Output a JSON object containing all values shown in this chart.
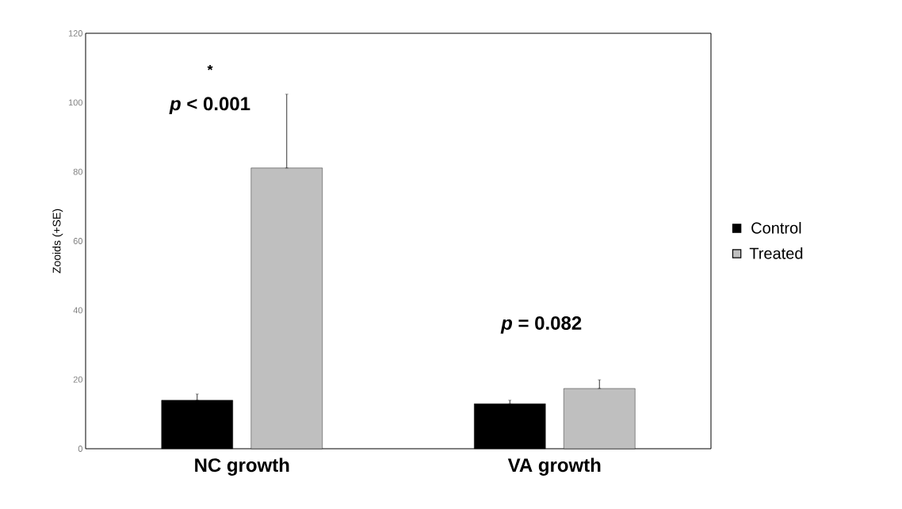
{
  "chart_data": {
    "type": "bar",
    "ylabel": "Zooids (+SE)",
    "categories": [
      "NC growth",
      "VA growth"
    ],
    "series": [
      {
        "name": "Control",
        "color": "#000000",
        "values": [
          14.0,
          13.0
        ],
        "errors": [
          [
            14.0,
            15.8
          ],
          [
            13.0,
            14.0
          ]
        ]
      },
      {
        "name": "Treated",
        "color": "#bfbfbf",
        "values": [
          81.1,
          17.4
        ],
        "errors": [
          [
            81.1,
            102.4
          ],
          [
            17.4,
            19.9
          ]
        ]
      }
    ],
    "ylim": [
      0,
      120
    ],
    "yticks": [
      0,
      20,
      40,
      60,
      80,
      100,
      120
    ],
    "grid": false,
    "legend": "right",
    "annotations": [
      "*",
      "*p* < 0.001",
      "*p* = 0.082"
    ]
  }
}
